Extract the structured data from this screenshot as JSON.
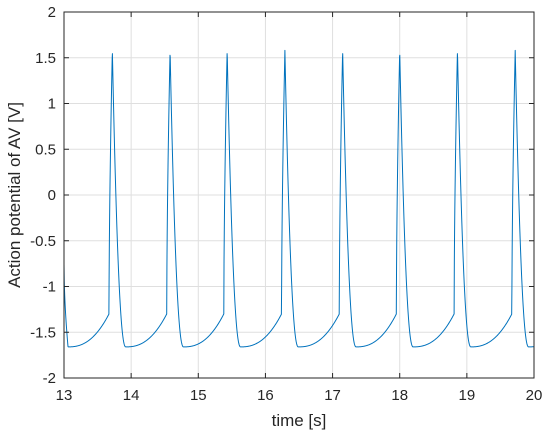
{
  "chart_data": {
    "type": "line",
    "xlabel": "time [s]",
    "ylabel": "Action potential of AV [V]",
    "xlim": [
      13,
      20
    ],
    "ylim": [
      -2,
      2
    ],
    "xticks": [
      13,
      14,
      15,
      16,
      17,
      18,
      19,
      20
    ],
    "yticks": [
      -2,
      -1.5,
      -1,
      -0.5,
      0,
      0.5,
      1,
      1.5,
      2
    ],
    "xtick_labels": [
      "13",
      "14",
      "15",
      "16",
      "17",
      "18",
      "19",
      "20"
    ],
    "ytick_labels": [
      "-2",
      "-1.5",
      "-1",
      "-0.5",
      "0",
      "0.5",
      "1",
      "1.5",
      "2"
    ],
    "grid": true,
    "color": "#0072BD",
    "series": [
      {
        "period": 0.857,
        "peak_value": 1.58,
        "min_value": -1.66,
        "peak_times": [
          13.72,
          14.58,
          15.43,
          16.29,
          17.15,
          18.0,
          18.86,
          19.72
        ],
        "trough_times": [
          13.06,
          13.92,
          14.78,
          15.63,
          16.49,
          17.35,
          18.2,
          19.06,
          19.92
        ],
        "initial_value": -0.75
      }
    ]
  }
}
